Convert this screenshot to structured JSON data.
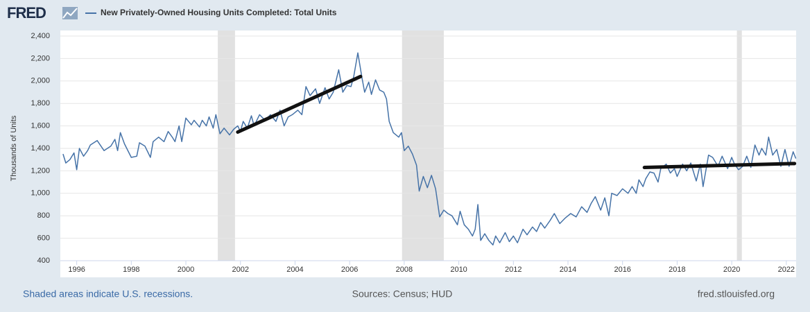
{
  "chart_data": {
    "type": "line",
    "logo": "FRED",
    "ylabel": "Thousands of Units",
    "footnote": "Shaded areas indicate U.S. recessions.",
    "source": "Sources: Census; HUD",
    "url": "fred.stlouisfed.org",
    "xlim": [
      1995.4,
      2022.36
    ],
    "xticks": [
      1996,
      1998,
      2000,
      2002,
      2004,
      2006,
      2008,
      2010,
      2012,
      2014,
      2016,
      2018,
      2020,
      2022
    ],
    "ylim": [
      400,
      2400
    ],
    "yticks": [
      400,
      600,
      800,
      {
        "value": 1000,
        "label": "1,000"
      },
      {
        "value": 1200,
        "label": "1,200"
      },
      {
        "value": 1400,
        "label": "1,400"
      },
      {
        "value": 1600,
        "label": "1,600"
      },
      {
        "value": 1800,
        "label": "1,800"
      },
      {
        "value": 2000,
        "label": "2,000"
      },
      {
        "value": 2200,
        "label": "2,200"
      },
      {
        "value": 2400,
        "label": "2,400"
      }
    ],
    "grid": true,
    "recessions": [
      [
        2001.17,
        2001.8
      ],
      [
        2007.92,
        2009.45
      ],
      [
        2020.19,
        2020.37
      ]
    ],
    "trend_lines": [
      {
        "color": "#111111",
        "x": [
          2001.9,
          2006.4
        ],
        "values": [
          1545,
          2040
        ]
      },
      {
        "color": "#111111",
        "x": [
          2016.8,
          2022.3
        ],
        "values": [
          1230,
          1265
        ]
      }
    ],
    "x": [
      1995.5,
      1995.6,
      1995.75,
      1995.9,
      1996.0,
      1996.1,
      1996.25,
      1996.4,
      1996.5,
      1996.75,
      1997.0,
      1997.25,
      1997.4,
      1997.5,
      1997.6,
      1997.75,
      1998.0,
      1998.2,
      1998.3,
      1998.5,
      1998.7,
      1998.8,
      1999.0,
      1999.2,
      1999.35,
      1999.5,
      1999.6,
      1999.75,
      1999.85,
      2000.0,
      2000.2,
      2000.3,
      2000.5,
      2000.6,
      2000.75,
      2000.85,
      2001.0,
      2001.1,
      2001.25,
      2001.4,
      2001.6,
      2001.75,
      2001.9,
      2002.0,
      2002.1,
      2002.25,
      2002.4,
      2002.5,
      2002.7,
      2002.9,
      2003.1,
      2003.3,
      2003.45,
      2003.6,
      2003.75,
      2003.9,
      2004.1,
      2004.25,
      2004.4,
      2004.55,
      2004.75,
      2004.9,
      2005.1,
      2005.25,
      2005.4,
      2005.6,
      2005.75,
      2005.9,
      2006.05,
      2006.15,
      2006.3,
      2006.45,
      2006.55,
      2006.7,
      2006.8,
      2006.95,
      2007.1,
      2007.25,
      2007.35,
      2007.45,
      2007.6,
      2007.8,
      2007.9,
      2008.0,
      2008.15,
      2008.3,
      2008.45,
      2008.55,
      2008.7,
      2008.85,
      2009.0,
      2009.15,
      2009.3,
      2009.45,
      2009.6,
      2009.75,
      2009.95,
      2010.05,
      2010.2,
      2010.35,
      2010.5,
      2010.6,
      2010.7,
      2010.8,
      2010.95,
      2011.1,
      2011.25,
      2011.35,
      2011.5,
      2011.7,
      2011.85,
      2012.0,
      2012.15,
      2012.35,
      2012.5,
      2012.7,
      2012.85,
      2013.0,
      2013.15,
      2013.35,
      2013.5,
      2013.7,
      2013.9,
      2014.1,
      2014.3,
      2014.5,
      2014.7,
      2014.85,
      2015.0,
      2015.2,
      2015.35,
      2015.5,
      2015.6,
      2015.8,
      2016.0,
      2016.2,
      2016.35,
      2016.5,
      2016.6,
      2016.75,
      2016.85,
      2017.0,
      2017.15,
      2017.3,
      2017.4,
      2017.6,
      2017.75,
      2017.9,
      2018.0,
      2018.2,
      2018.35,
      2018.5,
      2018.7,
      2018.85,
      2018.95,
      2019.15,
      2019.3,
      2019.5,
      2019.65,
      2019.85,
      2020.0,
      2020.1,
      2020.25,
      2020.4,
      2020.55,
      2020.7,
      2020.85,
      2021.0,
      2021.1,
      2021.25,
      2021.35,
      2021.5,
      2021.65,
      2021.8,
      2021.95,
      2022.1,
      2022.25,
      2022.35
    ],
    "series": [
      {
        "name": "New Privately-Owned Housing Units Completed: Total Units",
        "color": "#4572a7",
        "values": [
          1350,
          1270,
          1300,
          1360,
          1210,
          1400,
          1330,
          1380,
          1430,
          1470,
          1380,
          1420,
          1480,
          1380,
          1540,
          1440,
          1320,
          1330,
          1450,
          1420,
          1320,
          1460,
          1500,
          1460,
          1550,
          1500,
          1460,
          1600,
          1460,
          1670,
          1610,
          1650,
          1590,
          1650,
          1600,
          1680,
          1580,
          1700,
          1530,
          1580,
          1520,
          1570,
          1600,
          1550,
          1640,
          1580,
          1690,
          1600,
          1700,
          1650,
          1700,
          1640,
          1740,
          1600,
          1680,
          1700,
          1740,
          1700,
          1950,
          1870,
          1930,
          1800,
          1940,
          1840,
          1900,
          2100,
          1900,
          1960,
          1950,
          2040,
          2250,
          2030,
          1900,
          1990,
          1880,
          2010,
          1920,
          1900,
          1840,
          1640,
          1540,
          1500,
          1540,
          1380,
          1420,
          1350,
          1250,
          1020,
          1150,
          1050,
          1160,
          1040,
          790,
          850,
          820,
          800,
          720,
          840,
          720,
          680,
          620,
          680,
          900,
          580,
          640,
          580,
          540,
          620,
          560,
          650,
          570,
          620,
          560,
          680,
          630,
          700,
          660,
          740,
          690,
          760,
          820,
          730,
          780,
          820,
          790,
          880,
          830,
          910,
          970,
          850,
          960,
          800,
          1000,
          980,
          1040,
          1000,
          1060,
          1000,
          1120,
          1060,
          1130,
          1190,
          1180,
          1100,
          1220,
          1260,
          1180,
          1220,
          1150,
          1260,
          1200,
          1270,
          1110,
          1260,
          1060,
          1340,
          1320,
          1240,
          1330,
          1220,
          1320,
          1260,
          1210,
          1240,
          1330,
          1230,
          1430,
          1340,
          1400,
          1340,
          1500,
          1340,
          1390,
          1240,
          1390,
          1240,
          1370,
          1310
        ]
      }
    ]
  }
}
